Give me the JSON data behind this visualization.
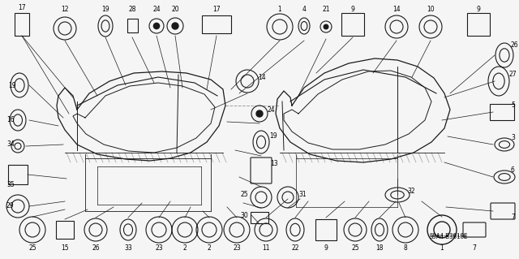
{
  "background_color": "#f5f5f5",
  "diagram_code": "S9A4-B3610E",
  "figsize": [
    6.4,
    3.19
  ],
  "dpi": 100,
  "line_color": "#1a1a1a",
  "text_color": "#000000",
  "font_size": 5.5
}
